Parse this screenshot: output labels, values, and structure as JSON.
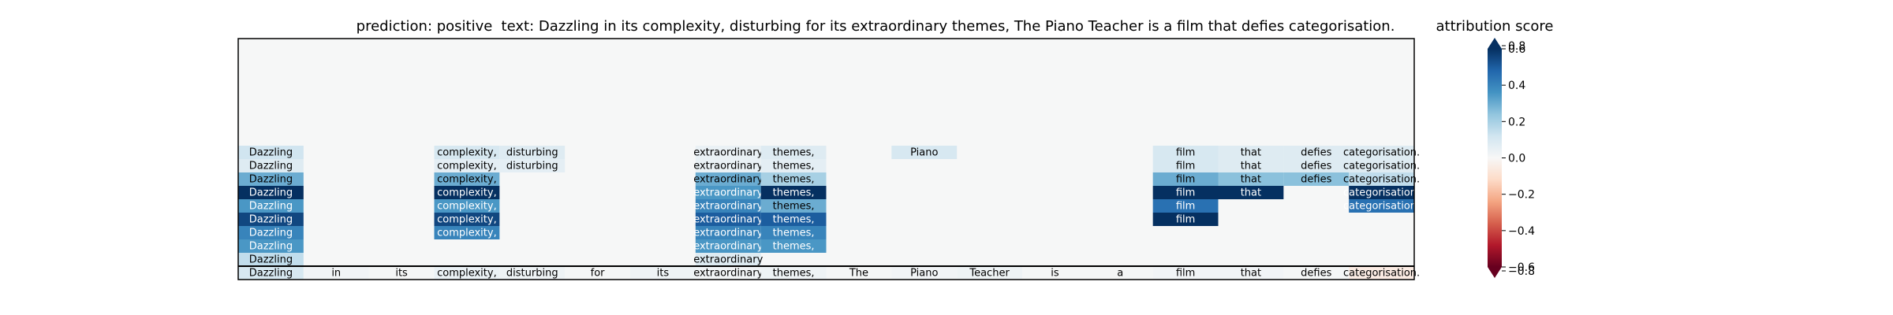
{
  "chart_data": {
    "type": "heatmap",
    "title_prediction": "prediction:  positive",
    "title_text": "text:  Dazzling in its complexity, disturbing for its extraordinary themes, The Piano Teacher is a film that defies categorisation.",
    "colorbar_label": "attribution score",
    "colormap": "RdBu",
    "vlim": [
      -0.6,
      0.6
    ],
    "colorbar_ticks": [
      "0.6",
      "0.4",
      "0.2",
      "0.0",
      "−0.2",
      "−0.4",
      "−0.6"
    ],
    "colorbar_tick_values": [
      0.6,
      0.4,
      0.2,
      0.0,
      -0.2,
      -0.4,
      -0.6
    ],
    "colorbar_extra_ticks": [
      "0.8",
      "−0.8"
    ],
    "colorbar_extra_tick_values": [
      0.8,
      -0.8
    ],
    "tokens": [
      "Dazzling",
      "in",
      "its",
      "complexity,",
      "disturbing",
      "for",
      "its",
      "extraordinary",
      "themes,",
      "The",
      "Piano",
      "Teacher",
      "is",
      "a",
      "film",
      "that",
      "defies",
      "categorisation."
    ],
    "rows": [
      [
        0.12,
        null,
        null,
        0.1,
        0.08,
        null,
        null,
        0.04,
        0.08,
        null,
        0.1,
        null,
        null,
        null,
        0.1,
        0.08,
        0.08,
        0.08
      ],
      [
        0.08,
        null,
        null,
        0.06,
        0.06,
        null,
        null,
        0.04,
        0.06,
        null,
        null,
        null,
        null,
        null,
        0.1,
        0.08,
        0.08,
        0.08
      ],
      [
        0.3,
        null,
        null,
        0.3,
        null,
        null,
        null,
        0.3,
        0.2,
        null,
        null,
        null,
        null,
        null,
        0.3,
        0.25,
        0.25,
        0.15
      ],
      [
        0.6,
        null,
        null,
        0.6,
        null,
        null,
        null,
        0.35,
        0.6,
        null,
        null,
        null,
        null,
        null,
        0.6,
        0.6,
        null,
        0.6
      ],
      [
        0.35,
        null,
        null,
        0.35,
        null,
        null,
        null,
        0.4,
        0.3,
        null,
        null,
        null,
        null,
        null,
        0.45,
        null,
        null,
        0.45
      ],
      [
        0.55,
        null,
        null,
        0.55,
        null,
        null,
        null,
        0.5,
        0.5,
        null,
        null,
        null,
        null,
        null,
        0.6,
        null,
        null,
        null
      ],
      [
        0.4,
        null,
        null,
        0.4,
        null,
        null,
        null,
        0.4,
        0.4,
        null,
        null,
        null,
        null,
        null,
        null,
        null,
        null,
        null
      ],
      [
        0.35,
        null,
        null,
        null,
        null,
        null,
        null,
        0.35,
        0.35,
        null,
        null,
        null,
        null,
        null,
        null,
        null,
        null,
        null
      ],
      [
        0.15,
        null,
        null,
        null,
        null,
        null,
        null,
        0.08,
        null,
        null,
        null,
        null,
        null,
        null,
        null,
        null,
        null,
        null
      ],
      [
        0.1,
        0.02,
        0.01,
        0.04,
        0.03,
        0.01,
        0.03,
        0.02,
        0.03,
        0.01,
        0.02,
        0.03,
        0.01,
        0.01,
        0.02,
        0.02,
        0.01,
        -0.05
      ]
    ]
  }
}
